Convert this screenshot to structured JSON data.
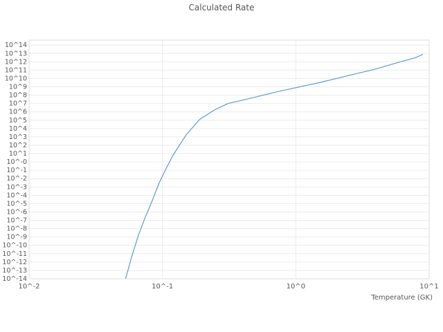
{
  "chart": {
    "title": "Calculated Rate",
    "xlabel": "Temperature (GK)"
  },
  "chart_data": {
    "type": "line",
    "x_scale": "log",
    "y_scale": "log",
    "xlim_log10": [
      -2,
      1
    ],
    "ylim_log10": [
      -14,
      14.6
    ],
    "grid": true,
    "line_color": "#5b9bd5",
    "grid_color": "#ebebeb",
    "border_color": "#dddddd",
    "tick_color": "#555555",
    "x_tick_values": [
      -2,
      -1,
      0,
      1
    ],
    "x_tick_labels": [
      "10^-2",
      "10^-1",
      "10^0",
      "10^1"
    ],
    "y_tick_values": [
      14,
      13,
      12,
      11,
      10,
      9,
      8,
      7,
      6,
      5,
      4,
      3,
      2,
      1,
      0,
      -1,
      -2,
      -3,
      -4,
      -5,
      -6,
      -7,
      -8,
      -9,
      -10,
      -11,
      -12,
      -13,
      -14
    ],
    "y_tick_labels": [
      "10^14",
      "10^13",
      "10^12",
      "10^11",
      "10^10",
      "10^9",
      "10^8",
      "10^7",
      "10^6",
      "10^5",
      "10^4",
      "10^3",
      "10^2",
      "10^1",
      "10^-0",
      "10^-1",
      "10^-2",
      "10^-3",
      "10^-4",
      "10^-5",
      "10^-6",
      "10^-7",
      "10^-8",
      "10^-9",
      "10^-10",
      "10^-11",
      "10^-12",
      "10^-13",
      "10^-14"
    ],
    "series": [
      {
        "name": "calculated-rate",
        "x": [
          0.053,
          0.059,
          0.066,
          0.074,
          0.084,
          0.094,
          0.105,
          0.12,
          0.15,
          0.19,
          0.25,
          0.31,
          0.45,
          0.72,
          1.0,
          1.5,
          2.4,
          3.9,
          5.5,
          7.9,
          9.0
        ],
        "log10_y": [
          -14,
          -11.3,
          -8.8,
          -6.7,
          -4.6,
          -2.6,
          -1.0,
          0.8,
          3.2,
          5.1,
          6.3,
          7.0,
          7.6,
          8.4,
          8.9,
          9.5,
          10.3,
          11.1,
          11.8,
          12.5,
          12.9
        ]
      }
    ]
  }
}
